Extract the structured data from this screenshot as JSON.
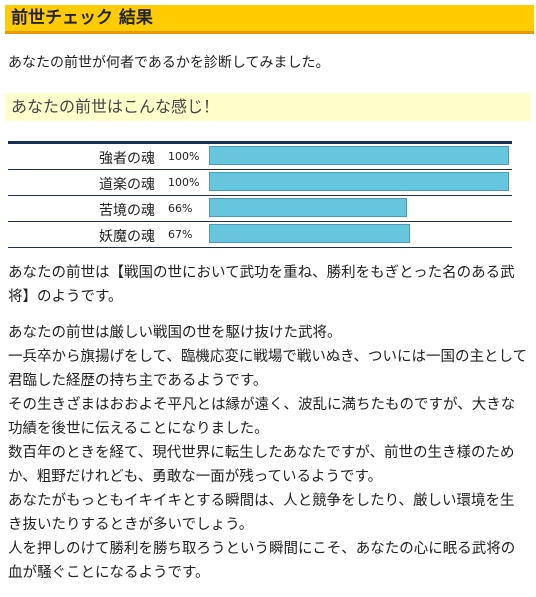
{
  "header": {
    "title": "前世チェック 結果"
  },
  "intro": "あなたの前世が何者であるかを診断してみました。",
  "section": {
    "title": "あなたの前世はこんな感じ！"
  },
  "stats": {
    "max": 100,
    "rows": [
      {
        "label": "強者の魂",
        "value": 100,
        "value_label": "100%"
      },
      {
        "label": "道楽の魂",
        "value": 100,
        "value_label": "100%"
      },
      {
        "label": "苦境の魂",
        "value": 66,
        "value_label": "66%"
      },
      {
        "label": "妖魔の魂",
        "value": 67,
        "value_label": "67%"
      }
    ]
  },
  "result": "あなたの前世は【戦国の世において武功を重ね、勝利をもぎとった名のある武将】のようです。",
  "details": [
    "あなたの前世は厳しい戦国の世を駆け抜けた武将。",
    "一兵卒から旗揚げをして、臨機応変に戦場で戦いぬき、ついには一国の主として君臨した経歴の持ち主であるようです。",
    "その生きざまはおおよそ平凡とは縁が遠く、波乱に満ちたものですが、大きな功績を後世に伝えることになりました。",
    "数百年のときを経て、現代世界に転生したあなたですが、前世の生き様のためか、粗野だけれども、勇敢な一面が残っているようです。",
    "あなたがもっともイキイキとする瞬間は、人と競争をしたり、厳しい環境を生き抜いたりするときが多いでしょう。",
    "人を押しのけて勝利を勝ち取ろうという瞬間にこそ、あなたの心に眠る武将の血が騒ぐことになるようです。"
  ]
}
